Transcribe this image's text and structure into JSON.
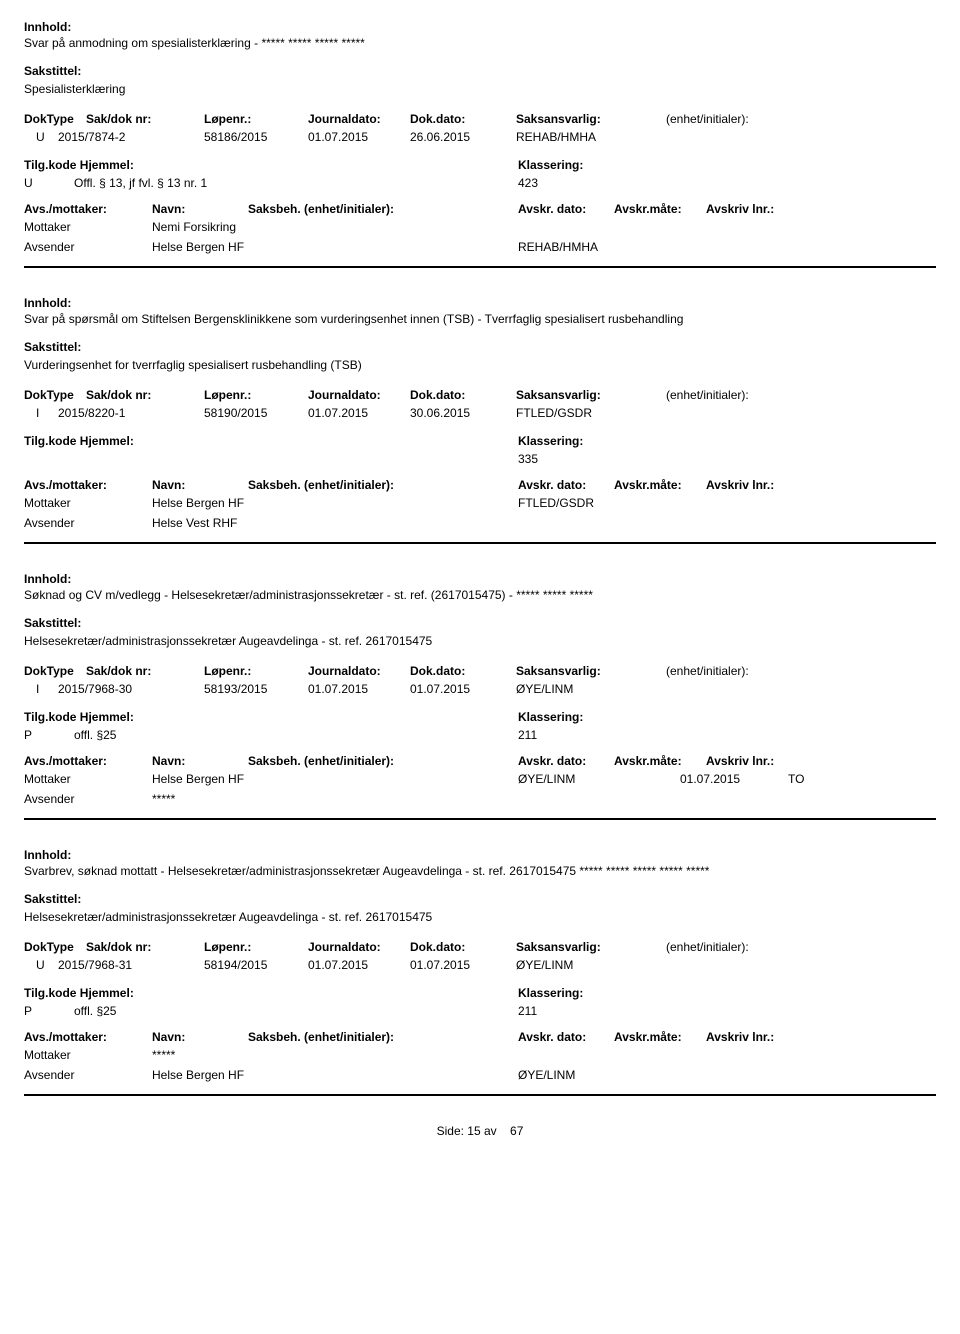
{
  "labels": {
    "innhold": "Innhold:",
    "sakstittel": "Sakstittel:",
    "doktype": "DokType",
    "sakdoknr": "Sak/dok nr:",
    "lopenr": "Løpenr.:",
    "journaldato": "Journaldato:",
    "dokdato": "Dok.dato:",
    "saksansvarlig": "Saksansvarlig:",
    "enhet": "(enhet/initialer):",
    "tilgkode": "Tilg.kode",
    "hjemmel": "Hjemmel:",
    "klassering": "Klassering:",
    "avsmottaker": "Avs./mottaker:",
    "navn": "Navn:",
    "saksbeh": "Saksbeh.",
    "saksbeh_enhet": "(enhet/initialer):",
    "avskrdato": "Avskr. dato:",
    "avskrmate": "Avskr.måte:",
    "avskrivlnr": "Avskriv lnr.:",
    "mottaker": "Mottaker",
    "avsender": "Avsender"
  },
  "records": [
    {
      "innhold": "Svar på anmodning om spesialisterklæring - ***** ***** ***** *****",
      "sakstittel": "Spesialisterklæring",
      "doktype": "U",
      "sakdoknr": "2015/7874-2",
      "lopenr": "58186/2015",
      "journaldato": "01.07.2015",
      "dokdato": "26.06.2015",
      "saksansvarlig": "REHAB/HMHA",
      "tilgkode": "U",
      "hjemmel": "Offl. § 13, jf fvl. § 13 nr. 1",
      "klassering": "423",
      "mottaker_name": "Nemi Forsikring",
      "mottaker_saksbeh": "",
      "mottaker_date": "",
      "mottaker_mate": "",
      "avsender_name": "Helse Bergen HF",
      "avsender_saksbeh": "REHAB/HMHA"
    },
    {
      "innhold": "Svar på spørsmål om Stiftelsen Bergensklinikkene som vurderingsenhet innen  (TSB) - Tverrfaglig spesialisert rusbehandling",
      "sakstittel": "Vurderingsenhet for tverrfaglig spesialisert rusbehandling (TSB)",
      "doktype": "I",
      "sakdoknr": "2015/8220-1",
      "lopenr": "58190/2015",
      "journaldato": "01.07.2015",
      "dokdato": "30.06.2015",
      "saksansvarlig": "FTLED/GSDR",
      "tilgkode": "",
      "hjemmel": "",
      "klassering": "335",
      "mottaker_name": "Helse Bergen HF",
      "mottaker_saksbeh": "FTLED/GSDR",
      "mottaker_date": "",
      "mottaker_mate": "",
      "avsender_name": "Helse Vest RHF",
      "avsender_saksbeh": ""
    },
    {
      "innhold": "Søknad og CV m/vedlegg - Helsesekretær/administrasjonssekretær - st. ref. (2617015475) - ***** ***** *****",
      "sakstittel": "Helsesekretær/administrasjonssekretær Augeavdelinga - st. ref. 2617015475",
      "doktype": "I",
      "sakdoknr": "2015/7968-30",
      "lopenr": "58193/2015",
      "journaldato": "01.07.2015",
      "dokdato": "01.07.2015",
      "saksansvarlig": "ØYE/LINM",
      "tilgkode": "P",
      "hjemmel": "offl. §25",
      "klassering": "211",
      "mottaker_name": "Helse Bergen HF",
      "mottaker_saksbeh": "ØYE/LINM",
      "mottaker_date": "01.07.2015",
      "mottaker_mate": "TO",
      "avsender_name": "*****",
      "avsender_saksbeh": ""
    },
    {
      "innhold": "Svarbrev, søknad mottatt - Helsesekretær/administrasjonssekretær Augeavdelinga - st. ref. 2617015475 ***** ***** ***** ***** *****",
      "sakstittel": "Helsesekretær/administrasjonssekretær Augeavdelinga - st. ref. 2617015475",
      "doktype": "U",
      "sakdoknr": "2015/7968-31",
      "lopenr": "58194/2015",
      "journaldato": "01.07.2015",
      "dokdato": "01.07.2015",
      "saksansvarlig": "ØYE/LINM",
      "tilgkode": "P",
      "hjemmel": "offl. §25",
      "klassering": "211",
      "mottaker_name": "*****",
      "mottaker_saksbeh": "",
      "mottaker_date": "",
      "mottaker_mate": "",
      "avsender_name": "Helse Bergen HF",
      "avsender_saksbeh": "ØYE/LINM"
    }
  ],
  "footer": {
    "side_label": "Side:",
    "page": "15",
    "av": "av",
    "total": "67"
  }
}
